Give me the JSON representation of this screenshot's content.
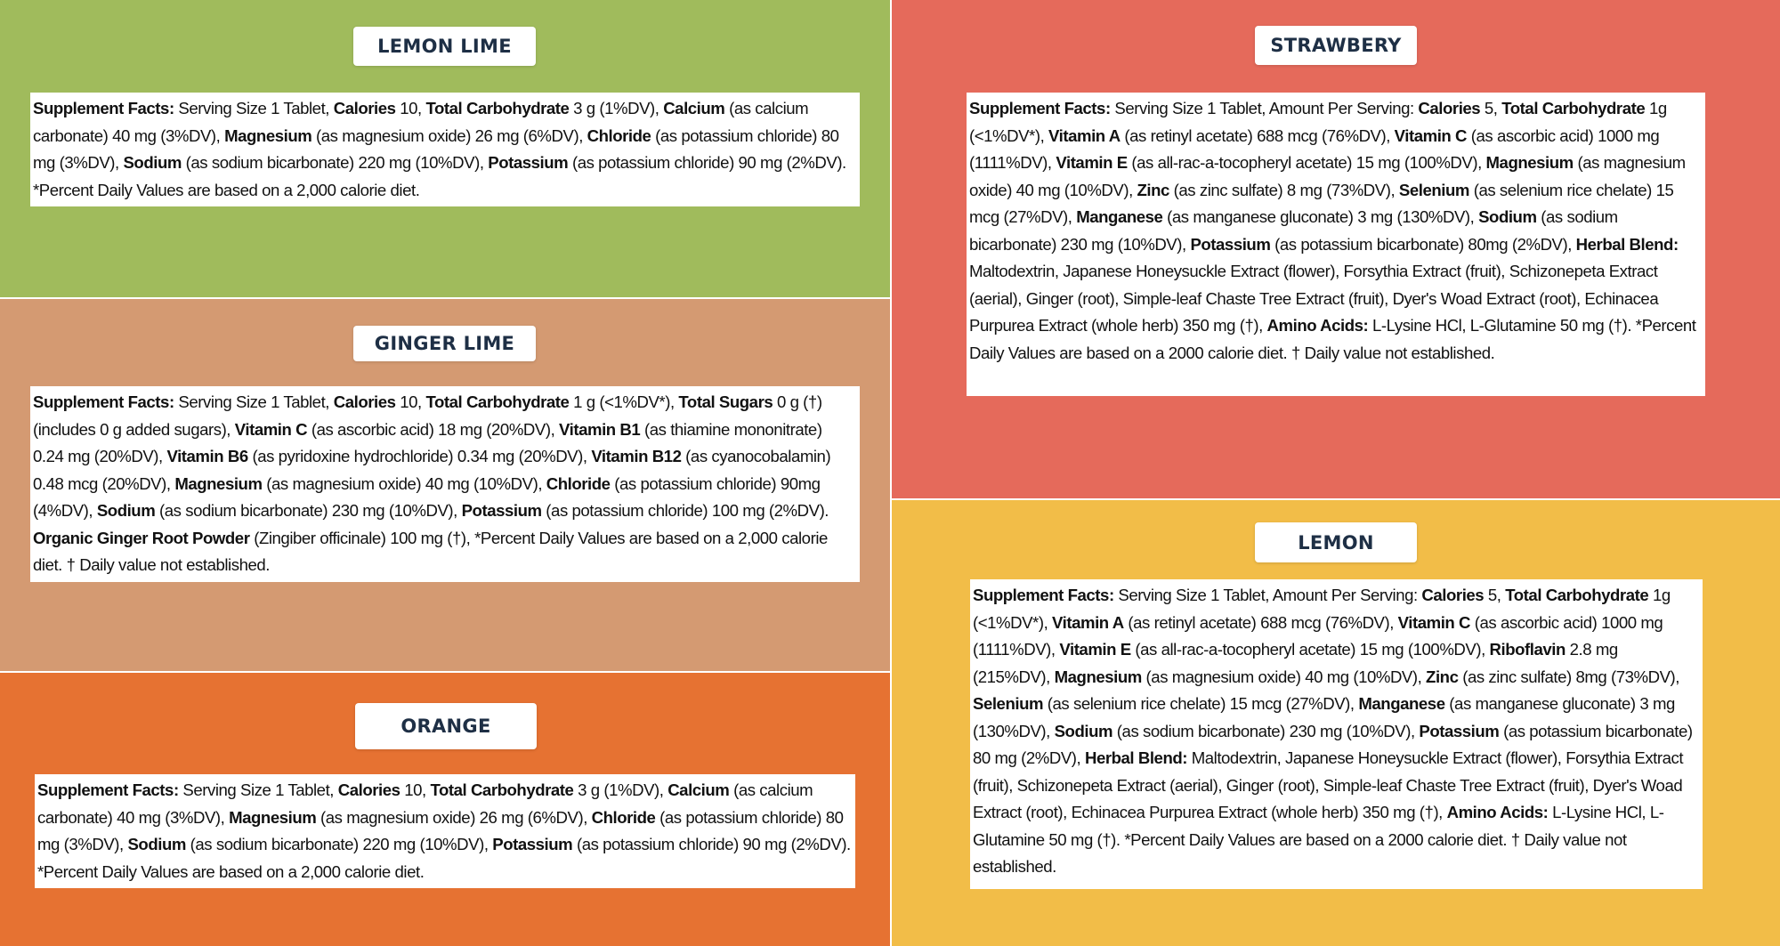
{
  "panels": [
    {
      "id": "lemon-lime",
      "title": "LEMON LIME",
      "color": "#a0bb5c",
      "facts": [
        {
          "t": "Supplement Facts:",
          "b": true
        },
        {
          "t": " Serving Size 1 Tablet, "
        },
        {
          "t": "Calories",
          "b": true
        },
        {
          "t": " 10, "
        },
        {
          "t": "Total Carbohydrate",
          "b": true
        },
        {
          "t": " 3 g (1%DV), "
        },
        {
          "t": "Calcium",
          "b": true
        },
        {
          "t": " (as calcium carbonate) 40 mg (3%DV), "
        },
        {
          "t": "Magnesium",
          "b": true
        },
        {
          "t": " (as magnesium oxide) 26 mg (6%DV), "
        },
        {
          "t": "Chloride",
          "b": true
        },
        {
          "t": " (as potassium chloride) 80 mg (3%DV), "
        },
        {
          "t": "Sodium",
          "b": true
        },
        {
          "t": " (as sodium bicarbonate) 220 mg (10%DV), "
        },
        {
          "t": "Potassium",
          "b": true
        },
        {
          "t": " (as potassium chloride) 90 mg (2%DV). *Percent Daily Values are based on a 2,000 calorie diet."
        }
      ]
    },
    {
      "id": "ginger-lime",
      "title": "GINGER LIME",
      "color": "#d49a72",
      "facts": [
        {
          "t": "Supplement Facts:",
          "b": true
        },
        {
          "t": " Serving Size 1 Tablet, "
        },
        {
          "t": "Calories",
          "b": true
        },
        {
          "t": " 10, "
        },
        {
          "t": "Total Carbohydrate",
          "b": true
        },
        {
          "t": " 1 g (<1%DV*), "
        },
        {
          "t": "Total Sugars",
          "b": true
        },
        {
          "t": " 0 g (†) (includes 0 g added sugars), "
        },
        {
          "t": "Vitamin C",
          "b": true
        },
        {
          "t": " (as ascorbic acid) 18 mg (20%DV), "
        },
        {
          "t": "Vitamin B1",
          "b": true
        },
        {
          "t": " (as thiamine mononitrate) 0.24 mg (20%DV), "
        },
        {
          "t": "Vitamin B6",
          "b": true
        },
        {
          "t": " (as pyridoxine hydrochloride) 0.34 mg (20%DV), "
        },
        {
          "t": "Vitamin B12",
          "b": true
        },
        {
          "t": " (as cyanocobalamin) 0.48 mcg (20%DV), "
        },
        {
          "t": "Magnesium",
          "b": true
        },
        {
          "t": " (as magnesium oxide) 40 mg (10%DV), "
        },
        {
          "t": "Chloride",
          "b": true
        },
        {
          "t": " (as potassium chloride) 90mg (4%DV), "
        },
        {
          "t": "Sodium",
          "b": true
        },
        {
          "t": " (as sodium bicarbonate) 230 mg (10%DV), "
        },
        {
          "t": "Potassium",
          "b": true
        },
        {
          "t": " (as potassium chloride) 100 mg (2%DV). "
        },
        {
          "t": "Organic Ginger Root Powder",
          "b": true
        },
        {
          "t": " (Zingiber officinale) 100 mg (†), *Percent Daily Values are based on a 2,000 calorie diet. † Daily value not established."
        }
      ]
    },
    {
      "id": "orange",
      "title": "ORANGE",
      "color": "#e67232",
      "facts": [
        {
          "t": "Supplement Facts:",
          "b": true
        },
        {
          "t": " Serving Size 1 Tablet, "
        },
        {
          "t": "Calories",
          "b": true
        },
        {
          "t": " 10, "
        },
        {
          "t": "Total Carbohydrate",
          "b": true
        },
        {
          "t": " 3 g (1%DV), "
        },
        {
          "t": "Calcium",
          "b": true
        },
        {
          "t": " (as calcium carbonate) 40 mg (3%DV), "
        },
        {
          "t": "Magnesium",
          "b": true
        },
        {
          "t": " (as magnesium oxide) 26 mg (6%DV), "
        },
        {
          "t": "Chloride",
          "b": true
        },
        {
          "t": " (as potassium chloride) 80 mg (3%DV), "
        },
        {
          "t": "Sodium",
          "b": true
        },
        {
          "t": " (as sodium bicarbonate) 220 mg (10%DV), "
        },
        {
          "t": "Potassium",
          "b": true
        },
        {
          "t": " (as potassium chloride) 90 mg (2%DV). *Percent Daily Values are based on a 2,000 calorie diet."
        }
      ]
    },
    {
      "id": "strawbery",
      "title": "STRAWBERY",
      "color": "#e56a5b",
      "facts": [
        {
          "t": "Supplement Facts:",
          "b": true
        },
        {
          "t": " Serving Size 1 Tablet, Amount Per Serving: "
        },
        {
          "t": "Calories",
          "b": true
        },
        {
          "t": " 5, "
        },
        {
          "t": "Total Carbohydrate",
          "b": true
        },
        {
          "t": " 1g (<1%DV*), "
        },
        {
          "t": "Vitamin A",
          "b": true
        },
        {
          "t": " (as retinyl acetate) 688 mcg (76%DV), "
        },
        {
          "t": "Vitamin C",
          "b": true
        },
        {
          "t": " (as ascorbic acid) 1000 mg (1111%DV), "
        },
        {
          "t": "Vitamin E",
          "b": true
        },
        {
          "t": " (as all-rac-a-tocopheryl acetate) 15 mg (100%DV), "
        },
        {
          "t": "Magnesium",
          "b": true
        },
        {
          "t": " (as magnesium oxide) 40 mg (10%DV), "
        },
        {
          "t": "Zinc",
          "b": true
        },
        {
          "t": " (as zinc sulfate) 8 mg (73%DV), "
        },
        {
          "t": "Selenium",
          "b": true
        },
        {
          "t": " (as selenium rice chelate) 15 mcg (27%DV), "
        },
        {
          "t": "Manganese",
          "b": true
        },
        {
          "t": " (as manganese gluconate) 3 mg (130%DV), "
        },
        {
          "t": "Sodium",
          "b": true
        },
        {
          "t": " (as sodium bicarbonate) 230 mg (10%DV), "
        },
        {
          "t": "Potassium",
          "b": true
        },
        {
          "t": " (as potassium bicarbonate) 80mg (2%DV), "
        },
        {
          "t": "Herbal Blend:",
          "b": true
        },
        {
          "t": " Maltodextrin, Japanese Honeysuckle Extract (flower), Forsythia Extract (fruit), Schizonepeta Extract (aerial), Ginger (root), Simple-leaf Chaste Tree Extract (fruit), Dyer's Woad Extract (root), Echinacea Purpurea Extract (whole herb) 350 mg (†), "
        },
        {
          "t": "Amino Acids:",
          "b": true
        },
        {
          "t": " L-Lysine HCl, L-Glutamine 50 mg (†). *Percent Daily Values are based on a 2000 calorie diet. † Daily value not established."
        }
      ]
    },
    {
      "id": "lemon",
      "title": "LEMON",
      "color": "#f2bd48",
      "facts": [
        {
          "t": "Supplement Facts:",
          "b": true
        },
        {
          "t": " Serving Size 1 Tablet, Amount Per Serving: "
        },
        {
          "t": "Calories",
          "b": true
        },
        {
          "t": " 5, "
        },
        {
          "t": "Total Carbohydrate",
          "b": true
        },
        {
          "t": " 1g (<1%DV*), "
        },
        {
          "t": "Vitamin A",
          "b": true
        },
        {
          "t": " (as retinyl acetate) 688 mcg (76%DV), "
        },
        {
          "t": "Vitamin C",
          "b": true
        },
        {
          "t": " (as ascorbic acid) 1000 mg (1111%DV), "
        },
        {
          "t": "Vitamin E",
          "b": true
        },
        {
          "t": " (as all-rac-a-tocopheryl acetate) 15 mg (100%DV), "
        },
        {
          "t": "Riboflavin",
          "b": true
        },
        {
          "t": " 2.8 mg (215%DV), "
        },
        {
          "t": "Magnesium",
          "b": true
        },
        {
          "t": " (as magnesium oxide) 40 mg (10%DV), "
        },
        {
          "t": "Zinc",
          "b": true
        },
        {
          "t": " (as zinc sulfate) 8mg (73%DV), "
        },
        {
          "t": "Selenium",
          "b": true
        },
        {
          "t": " (as selenium rice chelate) 15 mcg (27%DV), "
        },
        {
          "t": "Manganese",
          "b": true
        },
        {
          "t": " (as manganese gluconate) 3 mg (130%DV), "
        },
        {
          "t": "Sodium",
          "b": true
        },
        {
          "t": " (as sodium bicarbonate) 230 mg (10%DV), "
        },
        {
          "t": "Potassium",
          "b": true
        },
        {
          "t": " (as potassium bicarbonate) 80 mg (2%DV), "
        },
        {
          "t": "Herbal Blend:",
          "b": true
        },
        {
          "t": " Maltodextrin, Japanese Honeysuckle Extract (flower), Forsythia Extract (fruit), Schizonepeta Extract (aerial), Ginger (root), Simple-leaf Chaste Tree Extract (fruit), Dyer's Woad Extract (root), Echinacea Purpurea Extract (whole herb) 350 mg (†), "
        },
        {
          "t": "Amino Acids:",
          "b": true
        },
        {
          "t": " L-Lysine HCl, L-Glutamine 50 mg (†). *Percent Daily Values are based on a 2000 calorie diet. † Daily value not established."
        }
      ]
    }
  ]
}
